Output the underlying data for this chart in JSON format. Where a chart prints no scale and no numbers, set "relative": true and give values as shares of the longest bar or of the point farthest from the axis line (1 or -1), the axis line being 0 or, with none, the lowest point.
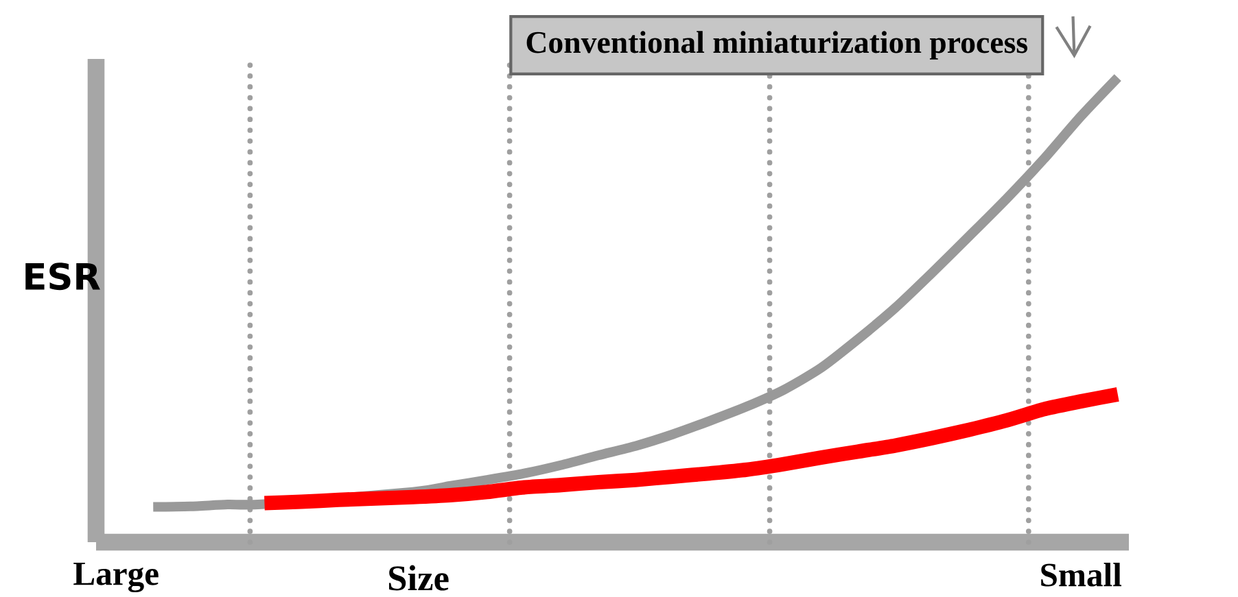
{
  "chart_data": {
    "type": "line",
    "relative": true,
    "xlabel": "Size",
    "ylabel": "ESR",
    "categories": [
      "Large",
      null,
      null,
      null,
      null,
      null,
      null,
      null,
      null,
      null,
      null,
      null,
      null,
      null,
      null,
      null,
      null,
      null,
      null,
      null,
      null,
      null,
      null,
      null,
      null,
      null,
      "Small",
      null
    ],
    "series": [
      {
        "color": "#999999",
        "values": [
          null,
          0.076,
          0.077,
          0.081,
          0.082,
          null,
          null,
          null,
          0.108,
          0.121,
          0.134,
          0.148,
          0.166,
          0.187,
          0.207,
          0.232,
          0.261,
          0.292,
          0.328,
          0.375,
          0.437,
          0.504,
          0.58,
          0.659,
          0.739,
          0.824,
          0.916,
          1
        ]
      },
      {
        "color": "#ff0000",
        "values": [
          null,
          null,
          null,
          null,
          0.084,
          0.087,
          0.091,
          0.094,
          0.097,
          0.101,
          0.108,
          0.118,
          0.123,
          0.129,
          0.134,
          0.141,
          0.148,
          0.156,
          0.168,
          0.182,
          0.195,
          0.208,
          0.224,
          0.242,
          0.262,
          0.286,
          0.303,
          0.318
        ]
      }
    ],
    "annotations": [
      "Conventional miniaturization process"
    ],
    "marker": "none",
    "line_style": "solid",
    "grid": false
  }
}
